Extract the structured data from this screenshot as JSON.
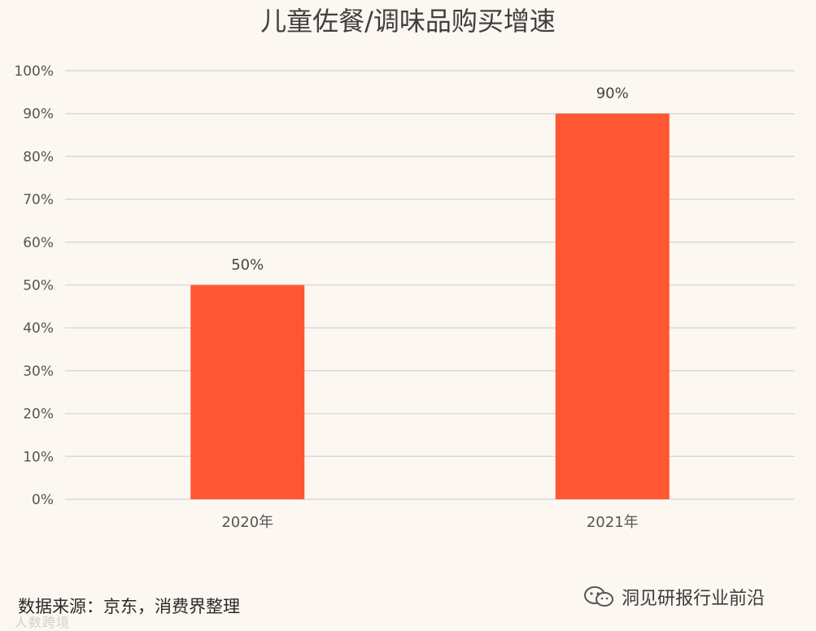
{
  "chart_data": {
    "type": "bar",
    "title": "儿童佐餐/调味品购买增速",
    "categories": [
      "2020年",
      "2021年"
    ],
    "values": [
      50,
      90
    ],
    "data_labels": [
      "50%",
      "90%"
    ],
    "y_ticks": [
      "0%",
      "10%",
      "20%",
      "30%",
      "40%",
      "50%",
      "60%",
      "70%",
      "80%",
      "90%",
      "100%"
    ],
    "ylim": [
      0,
      100
    ],
    "grid": true,
    "bar_color": "#ff5733",
    "grid_color": "#d9d9d9"
  },
  "footer": {
    "source": "数据来源：京东，消费界整理",
    "watermark": "洞见研报行业前沿",
    "faint_mark": "人数跨境",
    "watermark_icon": "wechat-icon"
  }
}
